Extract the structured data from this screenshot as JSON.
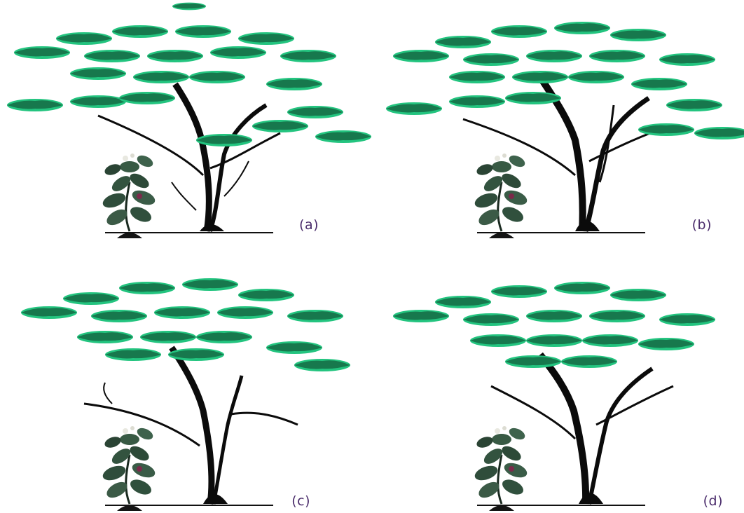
{
  "panels": [
    {
      "id": "a",
      "label": "(a)"
    },
    {
      "id": "b",
      "label": "(b)"
    },
    {
      "id": "c",
      "label": "(c)"
    },
    {
      "id": "d",
      "label": "(d)"
    }
  ],
  "colors": {
    "foliage": "#23c47f",
    "foliage_dark": "#0f3a25",
    "trunk": "#0b0b0b",
    "shrub": "#2f4a3a",
    "label": "#4a2c6b"
  }
}
